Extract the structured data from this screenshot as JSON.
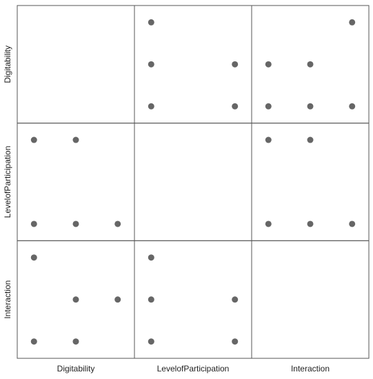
{
  "chart_data": {
    "type": "scatter_matrix",
    "variables": [
      "Digitability",
      "LevelofParticipation",
      "Interaction"
    ],
    "xlim": [
      0.6,
      3.4
    ],
    "ylim": [
      0.6,
      3.4
    ],
    "color": "#666666",
    "panels": [
      [
        null,
        {
          "x": [
            1,
            1,
            3,
            1,
            3
          ],
          "y": [
            3,
            2,
            2,
            1,
            1
          ]
        },
        {
          "x": [
            3,
            1,
            2,
            1,
            2,
            3
          ],
          "y": [
            3,
            2,
            2,
            1,
            1,
            1
          ]
        }
      ],
      [
        {
          "x": [
            1,
            2,
            1,
            2,
            3
          ],
          "y": [
            3,
            3,
            1,
            1,
            1
          ]
        },
        null,
        {
          "x": [
            1,
            2,
            1,
            2,
            3
          ],
          "y": [
            3,
            3,
            1,
            1,
            1
          ]
        }
      ],
      [
        {
          "x": [
            1,
            2,
            3,
            1,
            2
          ],
          "y": [
            3,
            2,
            2,
            1,
            1
          ]
        },
        {
          "x": [
            1,
            1,
            3,
            1,
            3
          ],
          "y": [
            3,
            2,
            2,
            1,
            1
          ]
        },
        null
      ]
    ]
  }
}
